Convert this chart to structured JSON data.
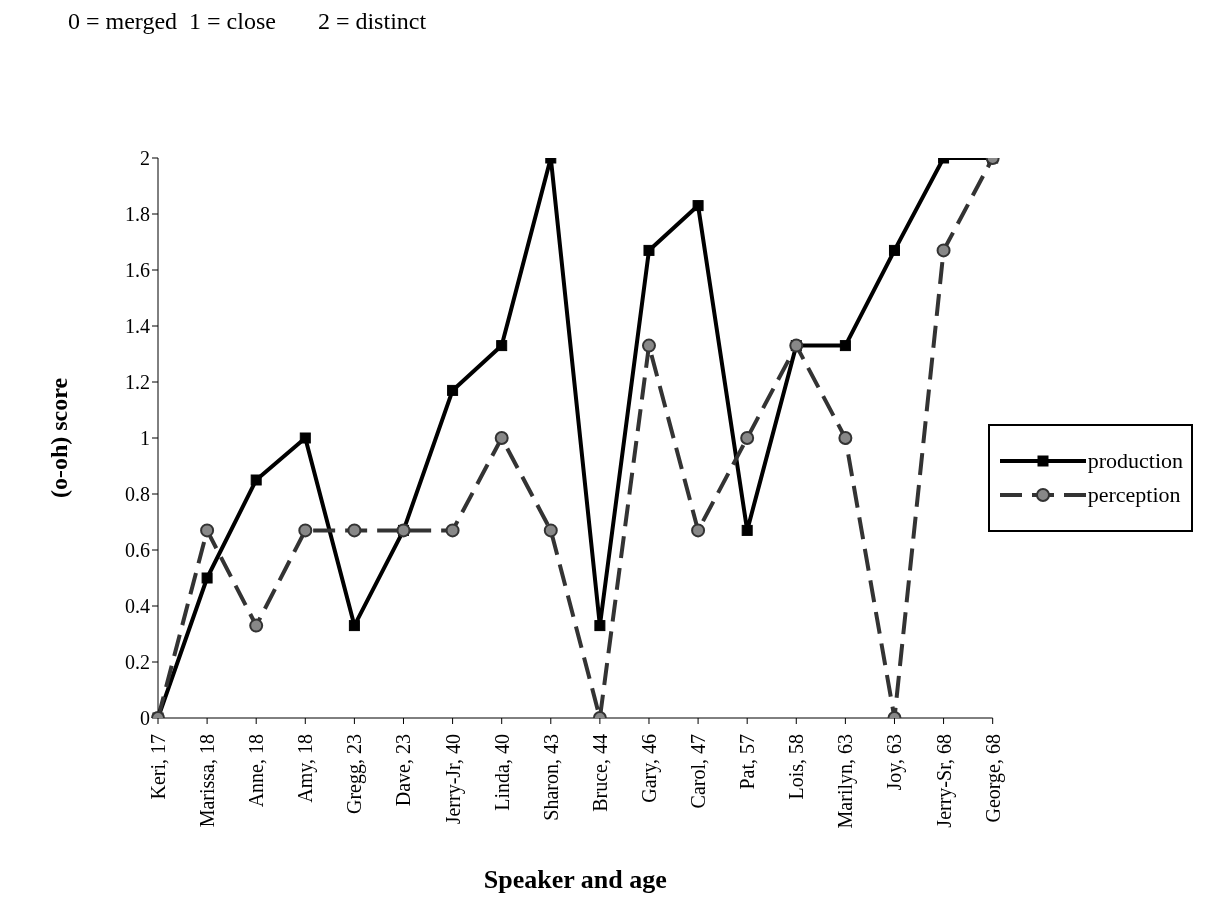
{
  "chart_data": {
    "type": "line",
    "annotations": [
      "0 = merged  1 = close       2 = distinct"
    ],
    "xlabel": "Speaker and age",
    "ylabel": "(o-oh) score",
    "categories": [
      "Keri, 17",
      "Marissa, 18",
      "Anne, 18",
      "Amy, 18",
      "Gregg, 23",
      "Dave, 23",
      "Jerry-Jr, 40",
      "Linda, 40",
      "Sharon, 43",
      "Bruce, 44",
      "Gary, 46",
      "Carol, 47",
      "Pat, 57",
      "Lois, 58",
      "Marilyn, 63",
      "Joy, 63",
      "Jerry-Sr, 68",
      "George, 68"
    ],
    "series": [
      {
        "name": "production",
        "color": "#000000",
        "marker": "square",
        "line_style": "solid",
        "values": [
          0,
          0.5,
          0.85,
          1,
          0.33,
          0.67,
          1.17,
          1.33,
          2,
          0.33,
          1.67,
          1.83,
          0.67,
          1.33,
          1.33,
          1.67,
          2,
          2
        ]
      },
      {
        "name": "perception",
        "color": "#333333",
        "marker": "circle",
        "line_style": "dashed",
        "values": [
          0,
          0.67,
          0.33,
          0.67,
          0.67,
          0.67,
          0.67,
          1,
          0.67,
          0,
          1.33,
          0.67,
          1,
          1.33,
          1,
          0,
          1.67,
          2
        ]
      }
    ],
    "ylim": [
      0,
      2
    ],
    "yticks": [
      0,
      0.2,
      0.4,
      0.6,
      0.8,
      1,
      1.2,
      1.4,
      1.6,
      1.8,
      2
    ],
    "grid": false,
    "legend": "right"
  }
}
